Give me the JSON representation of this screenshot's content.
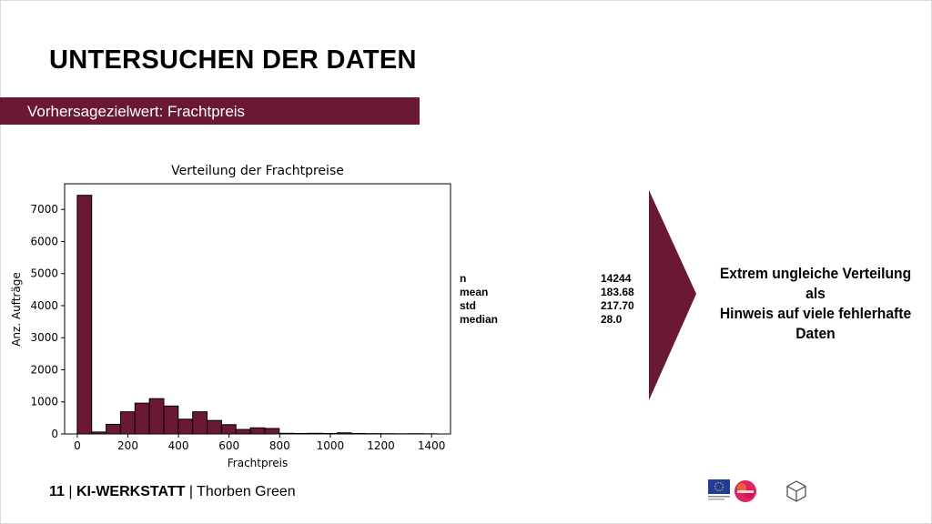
{
  "slide": {
    "title": "UNTERSUCHEN DER DATEN",
    "banner": "Vorhersagezielwert: Frachtpreis",
    "colors": {
      "accent": "#6b1832",
      "bar_fill": "#6b1832",
      "bar_edge": "#000000"
    }
  },
  "stats": [
    {
      "label": "n",
      "value": "14244"
    },
    {
      "label": "mean",
      "value": "183.68"
    },
    {
      "label": "std",
      "value": "217.70"
    },
    {
      "label": "median",
      "value": "28.0"
    }
  ],
  "conclusion": {
    "line1": "Extrem ungleiche Verteilung als",
    "line2": "Hinweis auf viele fehlerhafte",
    "line3": "Daten"
  },
  "footer": {
    "page": "11",
    "project": "KI-WERKSTATT",
    "author": "Thorben  Green"
  },
  "logos": {
    "eu": "eu-flag-icon",
    "partner": "partner-logo-icon",
    "cube": "cube-logo-icon"
  },
  "chart_data": {
    "type": "bar",
    "title": "Verteilung der Frachtpreise",
    "xlabel": "Frachtpreis",
    "ylabel": "Anz. Aufträge",
    "xlim": [
      -50,
      1475
    ],
    "ylim": [
      0,
      7800
    ],
    "bin_width": 57,
    "x_ticks": [
      0,
      200,
      400,
      600,
      800,
      1000,
      1200,
      1400
    ],
    "x_tick_labels": [
      "0",
      "200",
      "400",
      "600",
      "800",
      "1000",
      "1200",
      "1400"
    ],
    "y_ticks": [
      0,
      1000,
      2000,
      3000,
      4000,
      5000,
      6000,
      7000
    ],
    "y_tick_labels": [
      "0",
      "1000",
      "2000",
      "3000",
      "4000",
      "5000",
      "6000",
      "7000"
    ],
    "bins": [
      {
        "start": 0,
        "value": 7440
      },
      {
        "start": 57,
        "value": 60
      },
      {
        "start": 114,
        "value": 300
      },
      {
        "start": 171,
        "value": 690
      },
      {
        "start": 228,
        "value": 960
      },
      {
        "start": 285,
        "value": 1100
      },
      {
        "start": 342,
        "value": 870
      },
      {
        "start": 399,
        "value": 460
      },
      {
        "start": 456,
        "value": 690
      },
      {
        "start": 513,
        "value": 420
      },
      {
        "start": 570,
        "value": 290
      },
      {
        "start": 627,
        "value": 140
      },
      {
        "start": 684,
        "value": 190
      },
      {
        "start": 741,
        "value": 170
      },
      {
        "start": 798,
        "value": 20
      },
      {
        "start": 855,
        "value": 15
      },
      {
        "start": 912,
        "value": 20
      },
      {
        "start": 969,
        "value": 15
      },
      {
        "start": 1026,
        "value": 35
      },
      {
        "start": 1083,
        "value": 15
      },
      {
        "start": 1140,
        "value": 10
      },
      {
        "start": 1197,
        "value": 8
      },
      {
        "start": 1254,
        "value": 6
      },
      {
        "start": 1311,
        "value": 8
      },
      {
        "start": 1368,
        "value": 5
      }
    ]
  }
}
